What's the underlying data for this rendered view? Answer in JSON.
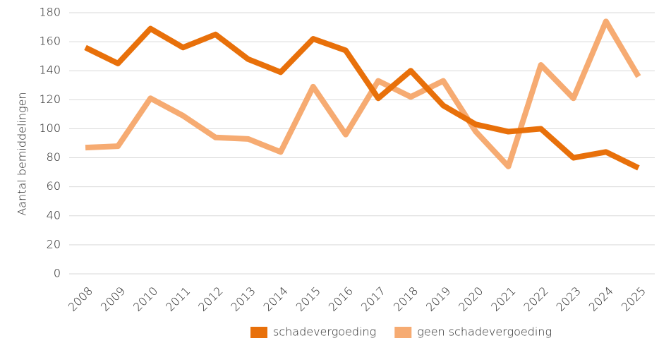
{
  "chart_data": {
    "type": "line",
    "y_label": "Aantal bemiddelingen",
    "categories": [
      "2008",
      "2009",
      "2010",
      "2011",
      "2012",
      "2013",
      "2014",
      "2015",
      "2016",
      "2017",
      "2018",
      "2019",
      "2020",
      "2021",
      "2022",
      "2023",
      "2024",
      "2025"
    ],
    "series": [
      {
        "name": "schadevergoeding",
        "color": "#e8700a",
        "values": [
          156,
          145,
          169,
          156,
          165,
          148,
          139,
          162,
          154,
          121,
          140,
          116,
          103,
          98,
          100,
          80,
          84,
          73
        ]
      },
      {
        "name": "geen schadevergoeding",
        "color": "#f6ab72",
        "values": [
          87,
          88,
          121,
          109,
          94,
          93,
          84,
          129,
          96,
          133,
          122,
          133,
          98,
          74,
          144,
          121,
          174,
          136
        ]
      }
    ],
    "ylim": [
      0,
      180
    ],
    "yticks": [
      0,
      20,
      40,
      60,
      80,
      100,
      120,
      140,
      160,
      180
    ],
    "grid": true,
    "legend": "bottom"
  }
}
